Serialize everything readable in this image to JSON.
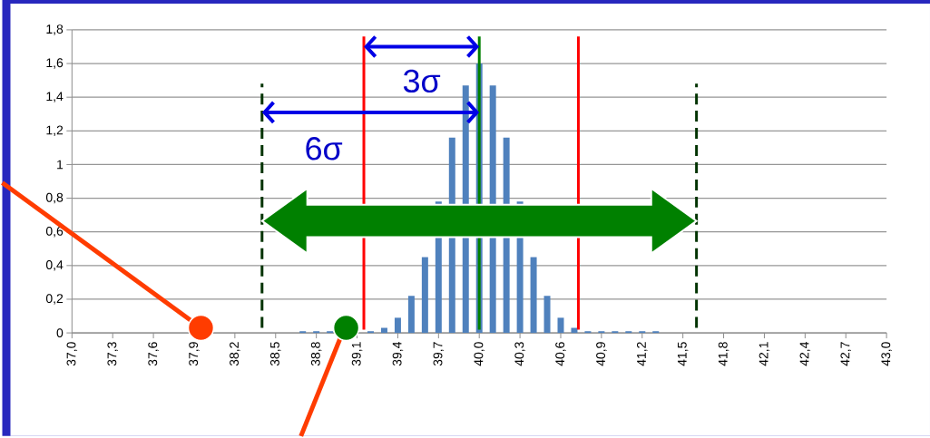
{
  "chart_data": {
    "type": "bar",
    "x": [
      37.0,
      37.1,
      37.2,
      37.3,
      37.4,
      37.5,
      37.6,
      37.7,
      37.8,
      37.9,
      38.0,
      38.1,
      38.2,
      38.3,
      38.4,
      38.5,
      38.6,
      38.7,
      38.8,
      38.9,
      39.0,
      39.1,
      39.2,
      39.3,
      39.4,
      39.5,
      39.6,
      39.7,
      39.8,
      39.9,
      40.0,
      40.1,
      40.2,
      40.3,
      40.4,
      40.5,
      40.6,
      40.7,
      40.8,
      40.9,
      41.0,
      41.1,
      41.2,
      41.3,
      41.4,
      41.5,
      41.6,
      41.7,
      41.8,
      41.9,
      42.0,
      42.1,
      42.2,
      42.3,
      42.4,
      42.5,
      42.6,
      42.7,
      42.8,
      42.9,
      43.0
    ],
    "values": [
      0,
      0,
      0,
      0,
      0,
      0,
      0,
      0,
      0,
      0,
      0,
      0,
      0,
      0,
      0,
      0,
      0,
      0.01,
      0.01,
      0.01,
      null,
      null,
      0.01,
      0.03,
      0.09,
      0.22,
      0.45,
      0.78,
      1.16,
      1.47,
      1.6,
      1.47,
      1.16,
      0.78,
      0.45,
      0.22,
      0.09,
      0.03,
      0.01,
      0.01,
      0.01,
      0.01,
      0.01,
      0.01,
      0,
      0,
      0,
      0,
      0,
      0,
      0,
      0,
      0,
      0,
      0,
      0,
      0,
      0,
      0,
      0,
      0
    ],
    "color": "#4f81bd",
    "xlim": [
      37.0,
      43.0
    ],
    "xticks": [
      {
        "value": 37.0,
        "label": "37,0"
      },
      {
        "value": 37.3,
        "label": "37,3"
      },
      {
        "value": 37.6,
        "label": "37,6"
      },
      {
        "value": 37.9,
        "label": "37,9"
      },
      {
        "value": 38.2,
        "label": "38,2"
      },
      {
        "value": 38.5,
        "label": "38,5"
      },
      {
        "value": 38.8,
        "label": "38,8"
      },
      {
        "value": 39.1,
        "label": "39,1"
      },
      {
        "value": 39.4,
        "label": "39,4"
      },
      {
        "value": 39.7,
        "label": "39,7"
      },
      {
        "value": 40.0,
        "label": "40,0"
      },
      {
        "value": 40.3,
        "label": "40,3"
      },
      {
        "value": 40.6,
        "label": "40,6"
      },
      {
        "value": 40.9,
        "label": "40,9"
      },
      {
        "value": 41.2,
        "label": "41,2"
      },
      {
        "value": 41.5,
        "label": "41,5"
      },
      {
        "value": 41.8,
        "label": "41,8"
      },
      {
        "value": 42.1,
        "label": "42,1"
      },
      {
        "value": 42.4,
        "label": "42,4"
      },
      {
        "value": 42.7,
        "label": "42,7"
      },
      {
        "value": 43.0,
        "label": "43,0"
      }
    ],
    "ylim": [
      0,
      1.8
    ],
    "yticks": [
      {
        "value": 0,
        "label": "0"
      },
      {
        "value": 0.2,
        "label": "0,2"
      },
      {
        "value": 0.4,
        "label": "0,4"
      },
      {
        "value": 0.6,
        "label": "0,6"
      },
      {
        "value": 0.8,
        "label": "0,8"
      },
      {
        "value": 1,
        "label": "1"
      },
      {
        "value": 1.2,
        "label": "1,2"
      },
      {
        "value": 1.4,
        "label": "1,4"
      },
      {
        "value": 1.6,
        "label": "1,6"
      },
      {
        "value": 1.8,
        "label": "1,8"
      }
    ],
    "grid": "y",
    "ref_lines": [
      {
        "axis": "x",
        "value": 39.15,
        "color": "#ff0000",
        "line_style": "solid"
      },
      {
        "axis": "x",
        "value": 40.73,
        "color": "#ff0000",
        "line_style": "solid"
      },
      {
        "axis": "x",
        "value": 40.0,
        "color": "#008000",
        "line_style": "solid"
      },
      {
        "axis": "x",
        "value": 38.4,
        "color": "#003300",
        "line_style": "dashed"
      },
      {
        "axis": "x",
        "value": 41.6,
        "color": "#003300",
        "line_style": "dashed"
      }
    ],
    "annotations": [
      "3σ",
      "6σ"
    ]
  }
}
